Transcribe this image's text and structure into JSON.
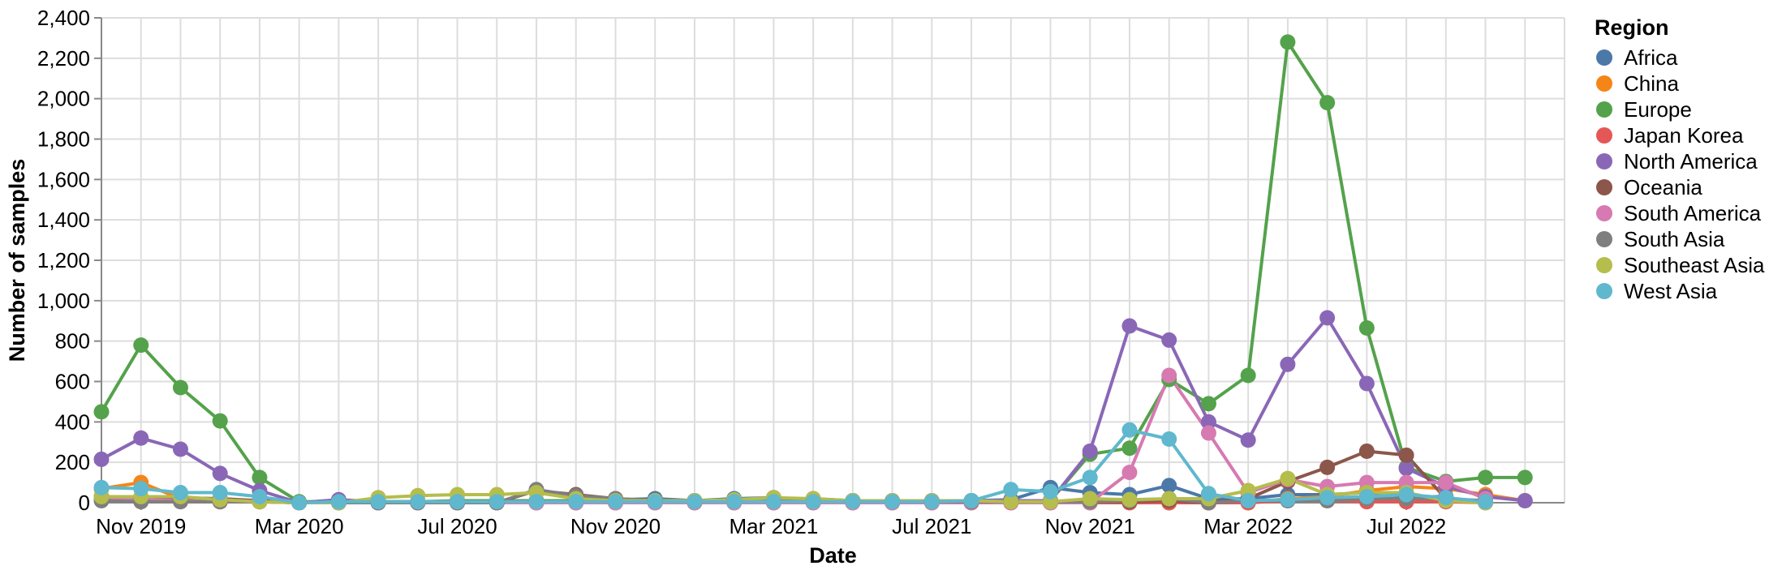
{
  "chart_data": {
    "type": "line",
    "title": "",
    "xlabel": "Date",
    "ylabel": "Number of samples",
    "ylim": [
      0,
      2400
    ],
    "yticks": [
      0,
      200,
      400,
      600,
      800,
      1000,
      1200,
      1400,
      1600,
      1800,
      2000,
      2200,
      2400
    ],
    "ytick_labels": [
      "0",
      "200",
      "400",
      "600",
      "800",
      "1,000",
      "1,200",
      "1,400",
      "1,600",
      "1,800",
      "2,000",
      "2,200",
      "2,400"
    ],
    "xlim": [
      "2019-09",
      "2022-10"
    ],
    "x": [
      "2019-09",
      "2019-10",
      "2019-11",
      "2019-12",
      "2020-01",
      "2020-02",
      "2020-03",
      "2020-04",
      "2020-05",
      "2020-06",
      "2020-07",
      "2020-08",
      "2020-09",
      "2020-10",
      "2020-11",
      "2020-12",
      "2021-01",
      "2021-02",
      "2021-03",
      "2021-04",
      "2021-05",
      "2021-06",
      "2021-07",
      "2021-08",
      "2021-09",
      "2021-10",
      "2021-11",
      "2021-12",
      "2022-01",
      "2022-02",
      "2022-03",
      "2022-04",
      "2022-05",
      "2022-06",
      "2022-07",
      "2022-08",
      "2022-09",
      "2022-10"
    ],
    "xticks": [
      "2019-10",
      "2020-02",
      "2020-06",
      "2020-10",
      "2021-02",
      "2021-06",
      "2021-10",
      "2022-02",
      "2022-06"
    ],
    "xtick_labels": [
      "Nov 2019",
      "Mar 2020",
      "Jul 2020",
      "Nov 2020",
      "Mar 2021",
      "Jul 2021",
      "Nov 2021",
      "Mar 2022",
      "Jul 2022"
    ],
    "grid": true,
    "legend": {
      "title": "Region",
      "placement": "right"
    },
    "series": [
      {
        "name": "Africa",
        "color": "#4c78a8",
        "values": [
          30,
          20,
          15,
          10,
          5,
          0,
          0,
          0,
          0,
          0,
          0,
          0,
          5,
          15,
          20,
          10,
          20,
          25,
          15,
          10,
          5,
          5,
          10,
          15,
          75,
          50,
          40,
          85,
          20,
          20,
          40,
          40,
          50,
          30,
          30,
          null,
          null,
          null
        ]
      },
      {
        "name": "China",
        "color": "#f58518",
        "values": [
          70,
          100,
          20,
          15,
          10,
          0,
          0,
          0,
          0,
          0,
          0,
          0,
          0,
          0,
          0,
          0,
          0,
          0,
          0,
          0,
          0,
          0,
          0,
          0,
          0,
          0,
          0,
          0,
          0,
          0,
          20,
          30,
          60,
          80,
          70,
          40,
          10,
          null
        ]
      },
      {
        "name": "Europe",
        "color": "#54a24b",
        "values": [
          450,
          780,
          570,
          405,
          125,
          5,
          5,
          5,
          5,
          10,
          10,
          10,
          10,
          10,
          10,
          10,
          10,
          10,
          10,
          10,
          10,
          10,
          10,
          10,
          10,
          240,
          270,
          610,
          490,
          630,
          2280,
          1980,
          865,
          175,
          105,
          125,
          125,
          null
        ]
      },
      {
        "name": "Japan Korea",
        "color": "#e45756",
        "values": [
          20,
          10,
          10,
          5,
          5,
          0,
          0,
          0,
          0,
          0,
          0,
          0,
          0,
          0,
          0,
          0,
          0,
          0,
          0,
          0,
          0,
          0,
          0,
          0,
          0,
          0,
          0,
          0,
          0,
          0,
          10,
          10,
          5,
          5,
          5,
          0,
          null,
          null
        ]
      },
      {
        "name": "North America",
        "color": "#8a67b6",
        "values": [
          215,
          320,
          265,
          145,
          60,
          0,
          15,
          5,
          5,
          5,
          5,
          5,
          5,
          10,
          10,
          10,
          10,
          10,
          10,
          10,
          10,
          10,
          10,
          10,
          10,
          255,
          875,
          805,
          400,
          310,
          685,
          915,
          590,
          170,
          80,
          30,
          10,
          null
        ]
      },
      {
        "name": "Oceania",
        "color": "#8c564b",
        "values": [
          30,
          20,
          25,
          20,
          10,
          0,
          0,
          0,
          0,
          0,
          0,
          60,
          40,
          20,
          10,
          5,
          10,
          15,
          20,
          10,
          5,
          5,
          5,
          5,
          5,
          5,
          5,
          10,
          0,
          20,
          105,
          175,
          255,
          235,
          20,
          10,
          null,
          null
        ]
      },
      {
        "name": "South America",
        "color": "#d67ab1",
        "values": [
          20,
          15,
          10,
          5,
          5,
          0,
          0,
          0,
          0,
          0,
          0,
          0,
          0,
          0,
          0,
          0,
          0,
          0,
          0,
          0,
          0,
          0,
          0,
          0,
          0,
          0,
          150,
          630,
          345,
          50,
          115,
          80,
          100,
          100,
          100,
          20,
          null,
          null
        ]
      },
      {
        "name": "South Asia",
        "color": "#7f7f7f",
        "values": [
          10,
          5,
          5,
          5,
          5,
          0,
          0,
          0,
          0,
          0,
          0,
          65,
          35,
          20,
          10,
          5,
          10,
          15,
          15,
          10,
          5,
          5,
          5,
          5,
          5,
          5,
          10,
          20,
          0,
          10,
          10,
          10,
          20,
          20,
          20,
          5,
          null,
          null
        ]
      },
      {
        "name": "Southeast Asia",
        "color": "#b5bd4c",
        "values": [
          30,
          30,
          30,
          15,
          5,
          0,
          0,
          25,
          35,
          40,
          40,
          50,
          20,
          10,
          10,
          10,
          15,
          25,
          20,
          10,
          10,
          10,
          10,
          5,
          5,
          20,
          15,
          20,
          20,
          60,
          120,
          40,
          50,
          50,
          10,
          0,
          null,
          null
        ]
      },
      {
        "name": "West Asia",
        "color": "#5fb8cd",
        "values": [
          75,
          70,
          50,
          50,
          30,
          0,
          5,
          5,
          5,
          5,
          5,
          5,
          5,
          5,
          5,
          5,
          5,
          5,
          5,
          5,
          5,
          5,
          10,
          65,
          55,
          125,
          360,
          315,
          45,
          10,
          15,
          25,
          30,
          40,
          25,
          5,
          null,
          null
        ]
      }
    ]
  }
}
